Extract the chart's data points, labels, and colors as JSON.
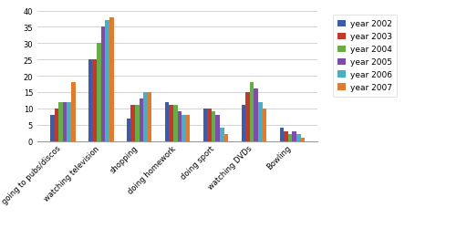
{
  "categories": [
    "going to pubs/discos",
    "watching television",
    "shopping",
    "doing homework",
    "doing sport",
    "watching DVDs",
    "Bowling"
  ],
  "years": [
    "year 2002",
    "year 2003",
    "year 2004",
    "year 2005",
    "year 2006",
    "year 2007"
  ],
  "colors": [
    "#3C5BA8",
    "#C0392B",
    "#6AAD48",
    "#7B4EA8",
    "#4BAFC4",
    "#E07B30"
  ],
  "values": {
    "year 2002": [
      8,
      25,
      7,
      12,
      10,
      11,
      4
    ],
    "year 2003": [
      10,
      25,
      11,
      11,
      10,
      15,
      3
    ],
    "year 2004": [
      12,
      30,
      11,
      11,
      9,
      18,
      2
    ],
    "year 2005": [
      12,
      35,
      13,
      9,
      8,
      16,
      3
    ],
    "year 2006": [
      12,
      37,
      15,
      8,
      4,
      12,
      2
    ],
    "year 2007": [
      18,
      38,
      15,
      8,
      2,
      10,
      1
    ]
  },
  "ylim": [
    0,
    40
  ],
  "yticks": [
    0,
    5,
    10,
    15,
    20,
    25,
    30,
    35,
    40
  ],
  "background_color": "#ffffff",
  "legend_fontsize": 6.5,
  "tick_fontsize": 6,
  "bar_width": 0.11
}
